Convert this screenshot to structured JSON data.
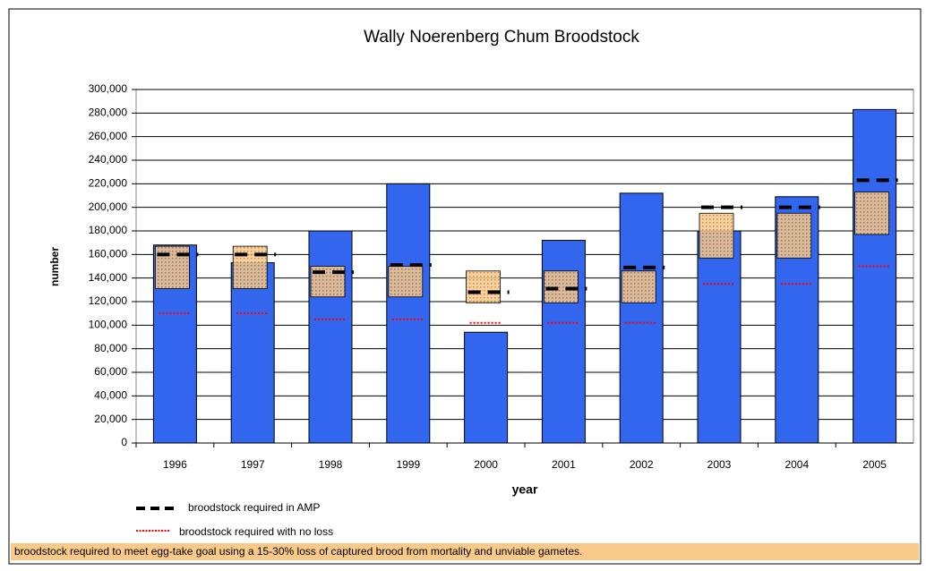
{
  "chart_data": {
    "type": "bar",
    "title": "Wally Noerenberg Chum Broodstock",
    "x_label": "year",
    "y_label": "number",
    "categories": [
      "1996",
      "1997",
      "1998",
      "1999",
      "2000",
      "2001",
      "2002",
      "2003",
      "2004",
      "2005"
    ],
    "values": [
      168000,
      153000,
      180000,
      220000,
      94000,
      172000,
      212000,
      180000,
      209000,
      283000
    ],
    "color": "#3366ee",
    "range": {
      "name": "broodstock required to meet egg-take goal using a 15-30% loss of captured brood from mortality and unviable gametes.",
      "color": "#f9c98a",
      "low": [
        131000,
        131000,
        124000,
        124000,
        119000,
        119000,
        119000,
        157000,
        157000,
        177000
      ],
      "high": [
        167000,
        167000,
        150000,
        150000,
        146000,
        146000,
        146000,
        195000,
        195000,
        213000
      ]
    },
    "series": [
      {
        "name": "broodstock required in AMP",
        "color": "#000000",
        "values": [
          160000,
          160000,
          145000,
          151000,
          128000,
          131000,
          149000,
          200000,
          200000,
          223000
        ]
      },
      {
        "name": "broodstock required with no loss",
        "color": "#ff0000",
        "values": [
          110000,
          110000,
          105000,
          105000,
          102000,
          102000,
          102000,
          135000,
          135000,
          150000
        ]
      }
    ],
    "ylim": [
      0,
      300000
    ],
    "yticks": [
      {
        "value": 0,
        "label": "0"
      },
      {
        "value": 20000,
        "label": "20,000"
      },
      {
        "value": 40000,
        "label": "40,000"
      },
      {
        "value": 60000,
        "label": "60,000"
      },
      {
        "value": 80000,
        "label": "80,000"
      },
      {
        "value": 100000,
        "label": "100,000"
      },
      {
        "value": 120000,
        "label": "120,000"
      },
      {
        "value": 140000,
        "label": "140,000"
      },
      {
        "value": 160000,
        "label": "160,000"
      },
      {
        "value": 180000,
        "label": "180,000"
      },
      {
        "value": 200000,
        "label": "200,000"
      },
      {
        "value": 220000,
        "label": "220,000"
      },
      {
        "value": 240000,
        "label": "240,000"
      },
      {
        "value": 260000,
        "label": "260,000"
      },
      {
        "value": 280000,
        "label": "280,000"
      },
      {
        "value": 300000,
        "label": "300,000"
      }
    ],
    "grid": true
  }
}
